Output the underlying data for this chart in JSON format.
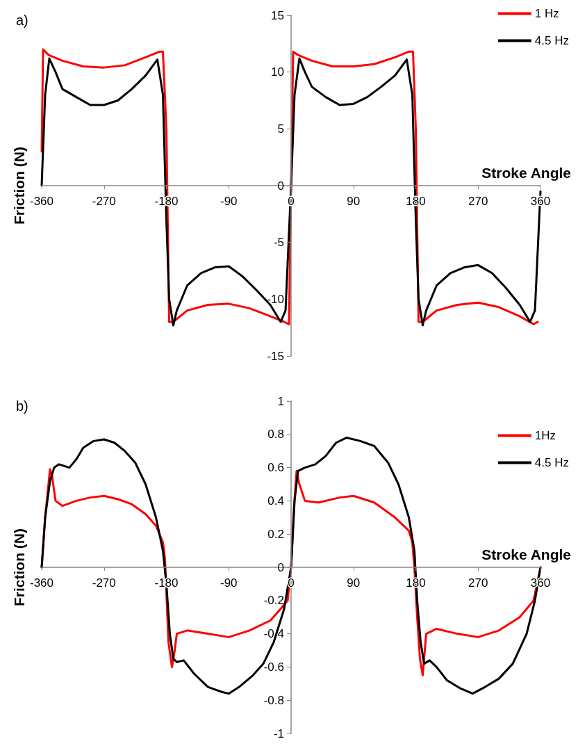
{
  "chart_data": [
    {
      "type": "line",
      "title": "a)",
      "xlabel": "Stroke Angle",
      "ylabel": "Friction (N)",
      "xlim": [
        -360,
        360
      ],
      "xticks": [
        -360,
        -270,
        -180,
        -90,
        0,
        90,
        180,
        270,
        360
      ],
      "ylim": [
        -15,
        15
      ],
      "yticks": [
        -15,
        -10,
        -5,
        0,
        5,
        10,
        15
      ],
      "grid": false,
      "legend": "top right",
      "marker": "none",
      "line_style": "solid",
      "series": [
        {
          "name": "1 Hz",
          "color": "#ff0000",
          "x": [
            -360,
            -358,
            -350,
            -330,
            -300,
            -270,
            -240,
            -210,
            -190,
            -185,
            -180,
            -176,
            -170,
            -150,
            -120,
            -90,
            -60,
            -30,
            -10,
            -3,
            0,
            3,
            10,
            30,
            60,
            90,
            120,
            150,
            170,
            176,
            180,
            184,
            190,
            210,
            240,
            270,
            300,
            330,
            350,
            356
          ],
          "values": [
            3,
            12,
            11.5,
            11,
            10.5,
            10.4,
            10.6,
            11.3,
            11.8,
            11.8,
            5,
            -12,
            -12,
            -11,
            -10.5,
            -10.4,
            -10.8,
            -11.5,
            -12,
            -12.2,
            0,
            11.8,
            11.5,
            11,
            10.5,
            10.5,
            10.7,
            11.3,
            11.8,
            11.8,
            5,
            -12,
            -12,
            -11,
            -10.5,
            -10.3,
            -10.7,
            -11.5,
            -12.2,
            -12
          ]
        },
        {
          "name": "4.5 Hz",
          "color": "#000000",
          "x": [
            -360,
            -355,
            -349,
            -340,
            -330,
            -310,
            -290,
            -270,
            -250,
            -230,
            -210,
            -193,
            -185,
            -180,
            -176,
            -170,
            -165,
            -150,
            -130,
            -110,
            -90,
            -70,
            -50,
            -30,
            -15,
            -8,
            0,
            5,
            12,
            20,
            30,
            50,
            70,
            90,
            110,
            130,
            150,
            167,
            175,
            180,
            184,
            190,
            195,
            210,
            230,
            250,
            270,
            290,
            310,
            330,
            345,
            352,
            360
          ],
          "values": [
            0,
            8,
            11.2,
            10,
            8.5,
            7.8,
            7.1,
            7.1,
            7.5,
            8.5,
            9.7,
            11.1,
            8,
            -3,
            -10,
            -12.3,
            -11,
            -8.8,
            -7.7,
            -7.2,
            -7.1,
            -8,
            -9.2,
            -10.5,
            -12,
            -11,
            0,
            8,
            11.2,
            10,
            8.7,
            7.8,
            7.1,
            7.2,
            7.8,
            8.7,
            9.7,
            11.1,
            8,
            -3,
            -10,
            -12.3,
            -11,
            -8.8,
            -7.7,
            -7.2,
            -7,
            -7.7,
            -9,
            -10.5,
            -12,
            -11,
            -0.5
          ]
        }
      ]
    },
    {
      "type": "line",
      "title": "b)",
      "xlabel": "Stroke Angle",
      "ylabel": "Friction (N)",
      "xlim": [
        -360,
        360
      ],
      "xticks": [
        -360,
        -270,
        -180,
        -90,
        0,
        90,
        180,
        270,
        360
      ],
      "ylim": [
        -1,
        1
      ],
      "yticks": [
        -1,
        -0.8,
        -0.6,
        -0.4,
        -0.2,
        0,
        0.2,
        0.4,
        0.6,
        0.8,
        1
      ],
      "grid": false,
      "legend": "top right",
      "marker": "none",
      "line_style": "solid",
      "series": [
        {
          "name": "1Hz",
          "color": "#ff0000",
          "x": [
            -360,
            -355,
            -348,
            -345,
            -340,
            -330,
            -310,
            -290,
            -270,
            -250,
            -230,
            -210,
            -195,
            -185,
            -182,
            -177,
            -172,
            -168,
            -165,
            -150,
            -120,
            -90,
            -60,
            -30,
            -15,
            -5,
            0,
            4,
            8,
            12,
            20,
            40,
            70,
            90,
            120,
            150,
            170,
            175,
            178,
            182,
            186,
            190,
            195,
            210,
            240,
            270,
            300,
            330,
            350,
            360
          ],
          "values": [
            0,
            0.3,
            0.59,
            0.55,
            0.4,
            0.37,
            0.4,
            0.42,
            0.43,
            0.41,
            0.38,
            0.32,
            0.25,
            0.15,
            0.05,
            -0.45,
            -0.6,
            -0.5,
            -0.4,
            -0.38,
            -0.4,
            -0.42,
            -0.38,
            -0.32,
            -0.25,
            -0.2,
            0,
            0.35,
            0.58,
            0.5,
            0.4,
            0.39,
            0.42,
            0.43,
            0.39,
            0.3,
            0.22,
            0.15,
            0,
            -0.3,
            -0.55,
            -0.65,
            -0.4,
            -0.37,
            -0.4,
            -0.42,
            -0.38,
            -0.3,
            -0.2,
            0
          ]
        },
        {
          "name": "4.5 Hz",
          "color": "#000000",
          "x": [
            -360,
            -355,
            -348,
            -342,
            -335,
            -320,
            -310,
            -300,
            -285,
            -270,
            -255,
            -240,
            -225,
            -210,
            -195,
            -185,
            -180,
            -175,
            -170,
            -165,
            -155,
            -140,
            -120,
            -100,
            -90,
            -75,
            -55,
            -40,
            -25,
            -10,
            0,
            5,
            10,
            20,
            35,
            50,
            65,
            80,
            100,
            120,
            140,
            155,
            170,
            178,
            182,
            187,
            192,
            200,
            210,
            225,
            245,
            262,
            280,
            300,
            320,
            340,
            352,
            360
          ],
          "values": [
            0,
            0.3,
            0.52,
            0.6,
            0.62,
            0.6,
            0.65,
            0.72,
            0.76,
            0.77,
            0.75,
            0.7,
            0.63,
            0.5,
            0.3,
            0.1,
            -0.1,
            -0.4,
            -0.55,
            -0.57,
            -0.56,
            -0.64,
            -0.72,
            -0.75,
            -0.76,
            -0.72,
            -0.65,
            -0.58,
            -0.45,
            -0.25,
            0,
            0.4,
            0.58,
            0.6,
            0.62,
            0.67,
            0.75,
            0.78,
            0.76,
            0.73,
            0.63,
            0.5,
            0.3,
            0.1,
            -0.2,
            -0.45,
            -0.58,
            -0.56,
            -0.6,
            -0.68,
            -0.73,
            -0.76,
            -0.72,
            -0.67,
            -0.58,
            -0.4,
            -0.2,
            0
          ]
        }
      ]
    }
  ]
}
